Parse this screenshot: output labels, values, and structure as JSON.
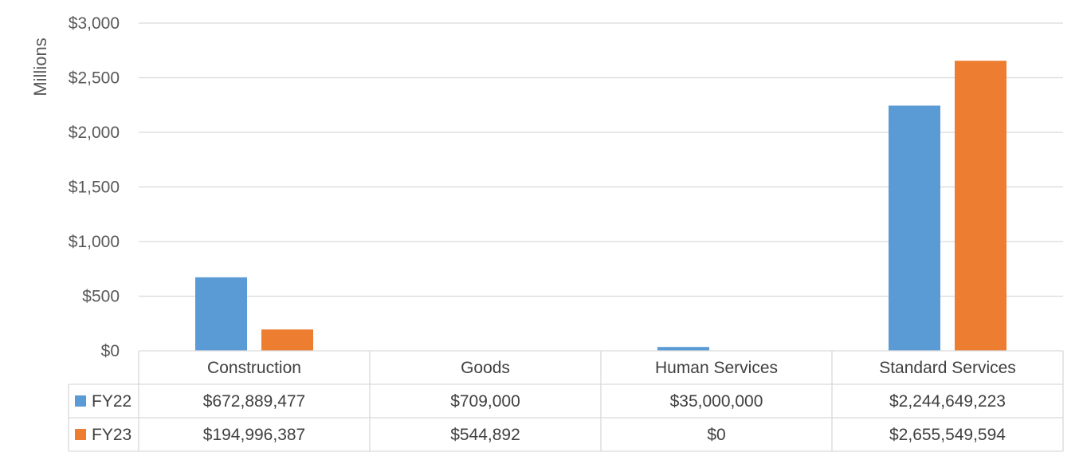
{
  "chart_data": {
    "type": "bar",
    "ylabel": "Millions",
    "ylim": [
      0,
      3000
    ],
    "y_ticks": [
      0,
      500,
      1000,
      1500,
      2000,
      2500,
      3000
    ],
    "y_tick_labels": [
      "$0",
      "$500",
      "$1,000",
      "$1,500",
      "$2,000",
      "$2,500",
      "$3,000"
    ],
    "categories": [
      "Construction",
      "Goods",
      "Human Services",
      "Standard Services"
    ],
    "series": [
      {
        "name": "FY22",
        "color": "#5B9BD5",
        "values": [
          672.889477,
          0.709,
          35.0,
          2244.649223
        ],
        "labels": [
          "$672,889,477",
          "$709,000",
          "$35,000,000",
          "$2,244,649,223"
        ]
      },
      {
        "name": "FY23",
        "color": "#ED7D31",
        "values": [
          194.996387,
          0.544892,
          0,
          2655.549594
        ],
        "labels": [
          "$194,996,387",
          "$544,892",
          "$0",
          "$2,655,549,594"
        ]
      }
    ],
    "grid": true,
    "legend": "data-table"
  }
}
